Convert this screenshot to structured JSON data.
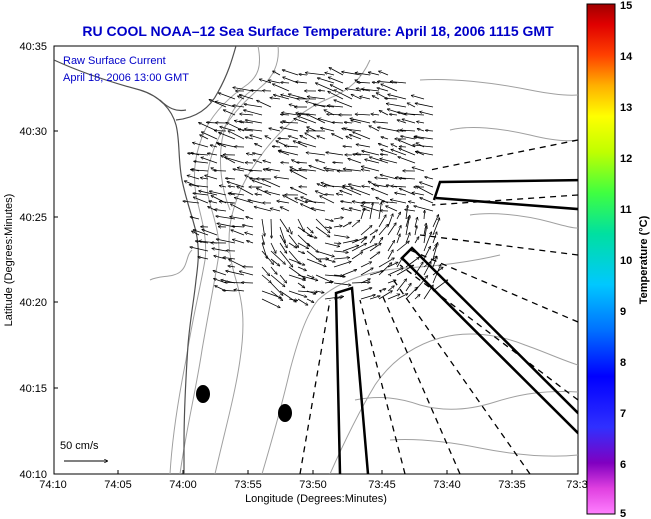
{
  "title": "RU COOL  NOAA–12  Sea Surface Temperature:  April 18, 2006 1115 GMT",
  "current_label": {
    "line1": "Raw Surface Current",
    "line2": "April 18, 2006 13:00 GMT"
  },
  "axes": {
    "xlabel": "Longitude (Degrees:Minutes)",
    "ylabel": "Latitude (Degrees:Minutes)",
    "x_ticks": [
      "74:10",
      "74:05",
      "74:00",
      "73:55",
      "73:50",
      "73:45",
      "73:40",
      "73:35",
      "73:3"
    ],
    "y_ticks": [
      "40:35",
      "40:30",
      "40:25",
      "40:20",
      "40:15",
      "40:10"
    ]
  },
  "colorbar": {
    "label": "Temperature (°C)",
    "ticks": [
      "15",
      "14",
      "13",
      "12",
      "11",
      "10",
      "9",
      "8",
      "7",
      "6",
      "5"
    ],
    "min": 5,
    "max": 15
  },
  "scale_vector": {
    "label": "50 cm/s"
  },
  "colors": {
    "title": "#0000c8",
    "land_contour": "#a0a0a0",
    "vectors": "#000000"
  },
  "map_features": {
    "markers": [
      "filled-circle-1",
      "filled-circle-2"
    ],
    "radar_sweep_regions": 3
  }
}
